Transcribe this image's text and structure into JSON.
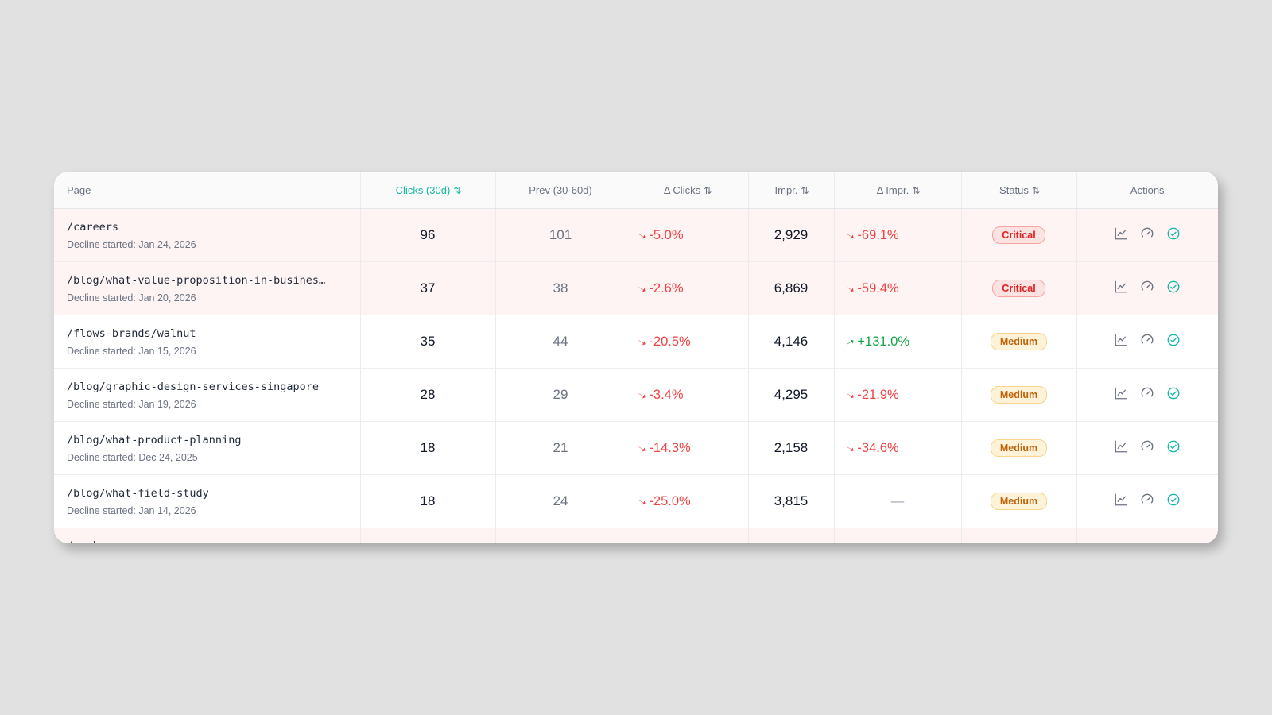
{
  "table": {
    "headers": {
      "page": "Page",
      "clicks": "Clicks (30d)",
      "prev": "Prev (30-60d)",
      "delta_clicks": "Δ Clicks",
      "impr": "Impr.",
      "delta_impr": "Δ Impr.",
      "status": "Status",
      "actions": "Actions"
    },
    "sort_glyph": "⇅",
    "rows": [
      {
        "path": "/careers",
        "decline": "Decline started: Jan 24, 2026",
        "clicks": "96",
        "prev": "101",
        "delta_clicks": "-5.0%",
        "impr": "2,929",
        "delta_impr": "-69.1%",
        "status": "Critical"
      },
      {
        "path": "/blog/what-value-proposition-in-business…",
        "decline": "Decline started: Jan 20, 2026",
        "clicks": "37",
        "prev": "38",
        "delta_clicks": "-2.6%",
        "impr": "6,869",
        "delta_impr": "-59.4%",
        "status": "Critical"
      },
      {
        "path": "/flows-brands/walnut",
        "decline": "Decline started: Jan 15, 2026",
        "clicks": "35",
        "prev": "44",
        "delta_clicks": "-20.5%",
        "impr": "4,146",
        "delta_impr": "+131.0%",
        "status": "Medium"
      },
      {
        "path": "/blog/graphic-design-services-singapore",
        "decline": "Decline started: Jan 19, 2026",
        "clicks": "28",
        "prev": "29",
        "delta_clicks": "-3.4%",
        "impr": "4,295",
        "delta_impr": "-21.9%",
        "status": "Medium"
      },
      {
        "path": "/blog/what-product-planning",
        "decline": "Decline started: Dec 24, 2025",
        "clicks": "18",
        "prev": "21",
        "delta_clicks": "-14.3%",
        "impr": "2,158",
        "delta_impr": "-34.6%",
        "status": "Medium"
      },
      {
        "path": "/blog/what-field-study",
        "decline": "Decline started: Jan 14, 2026",
        "clicks": "18",
        "prev": "24",
        "delta_clicks": "-25.0%",
        "impr": "3,815",
        "delta_impr": "—",
        "status": "Medium"
      }
    ],
    "partial_row": {
      "path": "/work"
    }
  },
  "icons": {
    "trend_down": "trend-down-icon",
    "trend_up": "trend-up-icon",
    "chart": "line-chart-icon",
    "gauge": "gauge-icon",
    "check": "check-circle-icon"
  },
  "colors": {
    "accent": "#14b8a6",
    "negative": "#ef4444",
    "positive": "#16a34a",
    "critical_row": "#fef4f4",
    "badge_critical": "#dc2626",
    "badge_medium": "#c2620a"
  }
}
